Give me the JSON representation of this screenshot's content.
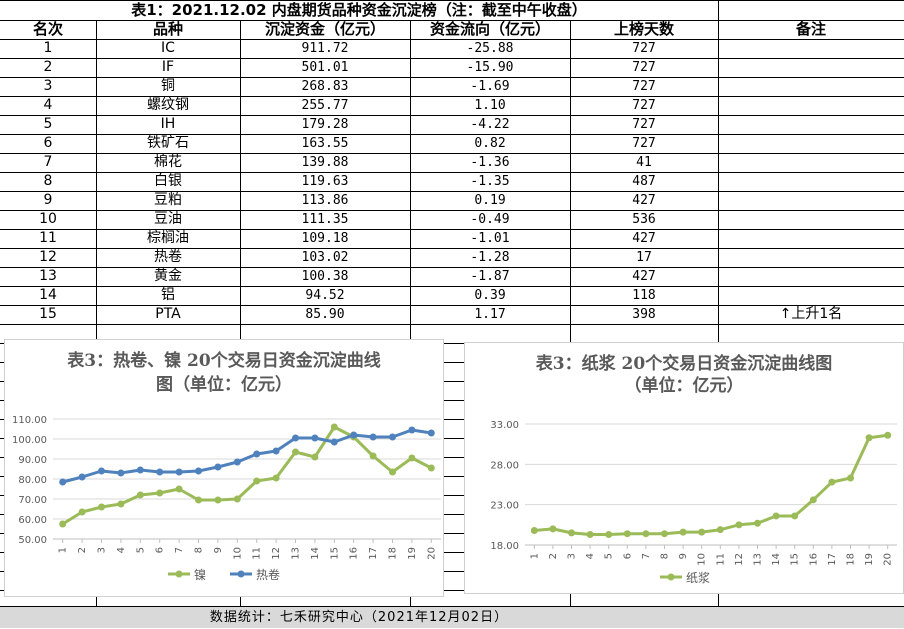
{
  "table": {
    "title": "表1：2021.12.02 内盘期货品种资金沉淀榜（注：截至中午收盘）",
    "headers": [
      "名次",
      "品种",
      "沉淀资金（亿元）",
      "资金流向（亿元）",
      "上榜天数",
      "备注"
    ],
    "rows": [
      {
        "rank": "1",
        "name": "IC",
        "capital": "911.72",
        "flow": "-25.88",
        "days": "727",
        "note": ""
      },
      {
        "rank": "2",
        "name": "IF",
        "capital": "501.01",
        "flow": "-15.90",
        "days": "727",
        "note": ""
      },
      {
        "rank": "3",
        "name": "铜",
        "capital": "268.83",
        "flow": "-1.69",
        "days": "727",
        "note": ""
      },
      {
        "rank": "4",
        "name": "螺纹钢",
        "capital": "255.77",
        "flow": "1.10",
        "days": "727",
        "note": ""
      },
      {
        "rank": "5",
        "name": "IH",
        "capital": "179.28",
        "flow": "-4.22",
        "days": "727",
        "note": ""
      },
      {
        "rank": "6",
        "name": "铁矿石",
        "capital": "163.55",
        "flow": "0.82",
        "days": "727",
        "note": ""
      },
      {
        "rank": "7",
        "name": "棉花",
        "capital": "139.88",
        "flow": "-1.36",
        "days": "41",
        "note": ""
      },
      {
        "rank": "8",
        "name": "白银",
        "capital": "119.63",
        "flow": "-1.35",
        "days": "487",
        "note": ""
      },
      {
        "rank": "9",
        "name": "豆粕",
        "capital": "113.86",
        "flow": "0.19",
        "days": "427",
        "note": ""
      },
      {
        "rank": "10",
        "name": "豆油",
        "capital": "111.35",
        "flow": "-0.49",
        "days": "536",
        "note": ""
      },
      {
        "rank": "11",
        "name": "棕榈油",
        "capital": "109.18",
        "flow": "-1.01",
        "days": "427",
        "note": ""
      },
      {
        "rank": "12",
        "name": "热卷",
        "capital": "103.02",
        "flow": "-1.28",
        "days": "17",
        "note": ""
      },
      {
        "rank": "13",
        "name": "黄金",
        "capital": "100.38",
        "flow": "-1.87",
        "days": "427",
        "note": ""
      },
      {
        "rank": "14",
        "name": "铝",
        "capital": "94.52",
        "flow": "0.39",
        "days": "118",
        "note": ""
      },
      {
        "rank": "15",
        "name": "PTA",
        "capital": "85.90",
        "flow": "1.17",
        "days": "398",
        "note": "↑上升1名"
      }
    ]
  },
  "footer": "数据统计：七禾研究中心（2021年12月02日）",
  "chart_data": [
    {
      "type": "line",
      "title": "表3：热卷、镍 20个交易日资金沉淀曲线图（单位：亿元）",
      "x": [
        1,
        2,
        3,
        4,
        5,
        6,
        7,
        8,
        9,
        10,
        11,
        12,
        13,
        14,
        15,
        16,
        17,
        18,
        19,
        20
      ],
      "ylim": [
        50,
        110
      ],
      "yticks": [
        "50.00",
        "60.00",
        "70.00",
        "80.00",
        "90.00",
        "100.00",
        "110.00"
      ],
      "grid": true,
      "legend": "bottom",
      "series": [
        {
          "name": "镍",
          "color": "#9bbb59",
          "values": [
            57.5,
            63.5,
            66,
            67.5,
            72,
            73,
            75,
            69.5,
            69.5,
            70,
            79,
            80.5,
            93.5,
            91,
            106,
            101,
            91.5,
            83.5,
            90.5,
            85.5
          ]
        },
        {
          "name": "热卷",
          "color": "#4f81bd",
          "values": [
            78.5,
            81,
            84,
            83,
            84.5,
            83.5,
            83.5,
            84,
            86,
            88.5,
            92.5,
            94,
            100.5,
            100.5,
            98.5,
            102,
            101,
            101,
            104.5,
            103
          ]
        }
      ]
    },
    {
      "type": "line",
      "title": "表3：纸浆 20个交易日资金沉淀曲线图（单位：亿元）",
      "x": [
        1,
        2,
        3,
        4,
        5,
        6,
        7,
        8,
        9,
        10,
        11,
        12,
        13,
        14,
        15,
        16,
        17,
        18,
        19,
        20
      ],
      "ylim": [
        18,
        33
      ],
      "yticks": [
        "18.00",
        "23.00",
        "28.00",
        "33.00"
      ],
      "grid": true,
      "legend": "bottom",
      "series": [
        {
          "name": "纸浆",
          "color": "#9bbb59",
          "values": [
            19.8,
            20,
            19.5,
            19.3,
            19.3,
            19.4,
            19.4,
            19.4,
            19.6,
            19.6,
            19.9,
            20.5,
            20.7,
            21.6,
            21.6,
            23.6,
            25.8,
            26.3,
            31.3,
            31.6
          ]
        }
      ]
    }
  ],
  "charts_text": {
    "c1_title_line1": "表3：热卷、镍 20个交易日资金沉淀曲线",
    "c1_title_line2": "图（单位：亿元）",
    "c2_title_line1": "表3：纸浆 20个交易日资金沉淀曲线图",
    "c2_title_line2": "（单位：亿元）",
    "c1_legend_a": "镍",
    "c1_legend_b": "热卷",
    "c2_legend": "纸浆"
  }
}
